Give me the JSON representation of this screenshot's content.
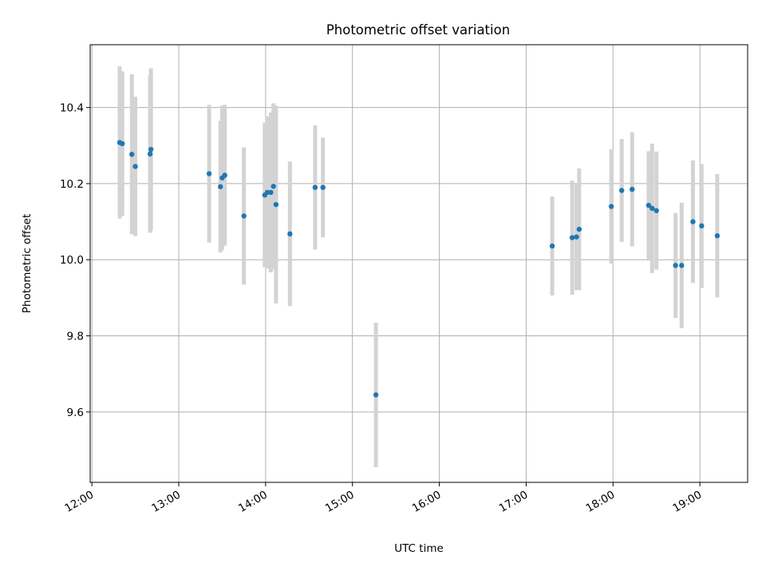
{
  "chart_data": {
    "type": "scatter",
    "title": "Photometric offset variation",
    "xlabel": "UTC time",
    "ylabel": "Photometric offset",
    "x_unit": "hours UTC",
    "xlim": [
      11.98,
      19.55
    ],
    "ylim": [
      9.415,
      10.565
    ],
    "grid": true,
    "x_ticks": [
      {
        "value": 12,
        "label": "12:00"
      },
      {
        "value": 13,
        "label": "13:00"
      },
      {
        "value": 14,
        "label": "14:00"
      },
      {
        "value": 15,
        "label": "15:00"
      },
      {
        "value": 16,
        "label": "16:00"
      },
      {
        "value": 17,
        "label": "17:00"
      },
      {
        "value": 18,
        "label": "18:00"
      },
      {
        "value": 19,
        "label": "19:00"
      }
    ],
    "y_ticks": [
      {
        "value": 9.6,
        "label": "9.6"
      },
      {
        "value": 9.8,
        "label": "9.8"
      },
      {
        "value": 10.0,
        "label": "10.0"
      },
      {
        "value": 10.2,
        "label": "10.2"
      },
      {
        "value": 10.4,
        "label": "10.4"
      }
    ],
    "colors": {
      "point": "#1f77b4",
      "errorbar": "#d3d3d3",
      "grid": "#b0b0b0"
    },
    "points": [
      {
        "x": 12.32,
        "y": 10.308,
        "err": 0.2
      },
      {
        "x": 12.35,
        "y": 10.305,
        "err": 0.19
      },
      {
        "x": 12.46,
        "y": 10.277,
        "err": 0.21
      },
      {
        "x": 12.5,
        "y": 10.245,
        "err": 0.183
      },
      {
        "x": 12.67,
        "y": 10.278,
        "err": 0.207
      },
      {
        "x": 12.68,
        "y": 10.29,
        "err": 0.213
      },
      {
        "x": 13.35,
        "y": 10.226,
        "err": 0.181
      },
      {
        "x": 13.48,
        "y": 10.192,
        "err": 0.173
      },
      {
        "x": 13.5,
        "y": 10.215,
        "err": 0.19
      },
      {
        "x": 13.53,
        "y": 10.222,
        "err": 0.185
      },
      {
        "x": 13.75,
        "y": 10.115,
        "err": 0.18
      },
      {
        "x": 13.99,
        "y": 10.17,
        "err": 0.19
      },
      {
        "x": 14.02,
        "y": 10.177,
        "err": 0.2
      },
      {
        "x": 14.06,
        "y": 10.177,
        "err": 0.21
      },
      {
        "x": 14.09,
        "y": 10.193,
        "err": 0.218
      },
      {
        "x": 14.12,
        "y": 10.145,
        "err": 0.26
      },
      {
        "x": 14.28,
        "y": 10.068,
        "err": 0.19
      },
      {
        "x": 14.57,
        "y": 10.19,
        "err": 0.163
      },
      {
        "x": 14.66,
        "y": 10.19,
        "err": 0.131
      },
      {
        "x": 15.27,
        "y": 9.645,
        "err": 0.19
      },
      {
        "x": 17.3,
        "y": 10.036,
        "err": 0.13
      },
      {
        "x": 17.53,
        "y": 10.058,
        "err": 0.15
      },
      {
        "x": 17.58,
        "y": 10.06,
        "err": 0.14
      },
      {
        "x": 17.61,
        "y": 10.08,
        "err": 0.16
      },
      {
        "x": 17.98,
        "y": 10.14,
        "err": 0.15
      },
      {
        "x": 18.1,
        "y": 10.182,
        "err": 0.135
      },
      {
        "x": 18.22,
        "y": 10.185,
        "err": 0.15
      },
      {
        "x": 18.41,
        "y": 10.143,
        "err": 0.142
      },
      {
        "x": 18.45,
        "y": 10.135,
        "err": 0.17
      },
      {
        "x": 18.5,
        "y": 10.129,
        "err": 0.155
      },
      {
        "x": 18.72,
        "y": 9.985,
        "err": 0.138
      },
      {
        "x": 18.79,
        "y": 9.985,
        "err": 0.165
      },
      {
        "x": 18.92,
        "y": 10.1,
        "err": 0.161
      },
      {
        "x": 19.02,
        "y": 10.089,
        "err": 0.163
      },
      {
        "x": 19.2,
        "y": 10.063,
        "err": 0.162
      }
    ]
  }
}
